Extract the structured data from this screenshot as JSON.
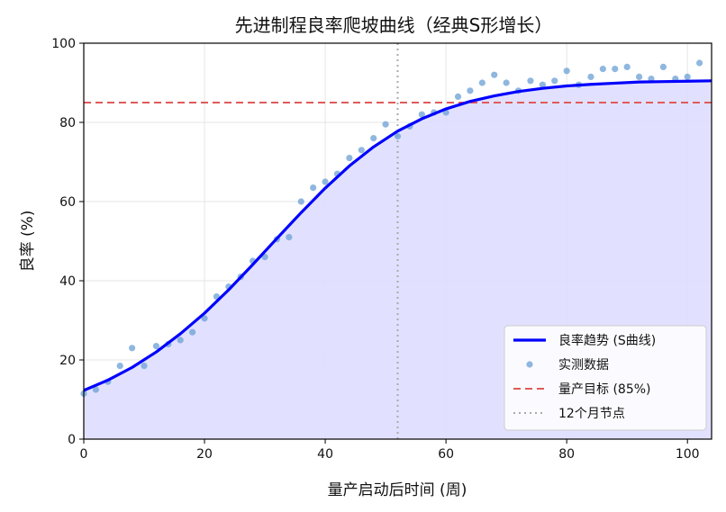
{
  "chart_data": {
    "type": "line",
    "title": "先进制程良率爬坡曲线（经典S形增长）",
    "xlabel": "量产启动后时间 (周)",
    "ylabel": "良率 (%)",
    "xlim": [
      0,
      104
    ],
    "ylim": [
      0,
      100
    ],
    "xticks": [
      0,
      20,
      40,
      60,
      80,
      100
    ],
    "yticks": [
      0,
      20,
      40,
      60,
      80,
      100
    ],
    "grid": true,
    "legend_position": "bottom-right",
    "series": [
      {
        "name": "良率趋势 (S曲线)",
        "kind": "line",
        "color": "#0000ff",
        "x": [
          0,
          4,
          8,
          12,
          16,
          20,
          24,
          28,
          32,
          36,
          40,
          44,
          48,
          52,
          56,
          60,
          64,
          68,
          72,
          76,
          80,
          84,
          88,
          92,
          96,
          100,
          104
        ],
        "y": [
          12.3,
          14.9,
          18.1,
          22.0,
          26.6,
          31.8,
          37.7,
          44.1,
          50.7,
          57.2,
          63.4,
          69.0,
          73.8,
          77.8,
          80.9,
          83.4,
          85.3,
          86.7,
          87.8,
          88.6,
          89.2,
          89.6,
          89.9,
          90.2,
          90.3,
          90.4,
          90.5
        ]
      },
      {
        "name": "实测数据",
        "kind": "scatter",
        "color": "#6a9fd4",
        "x": [
          0,
          2,
          4,
          6,
          8,
          10,
          12,
          14,
          16,
          18,
          20,
          22,
          24,
          26,
          28,
          30,
          32,
          34,
          36,
          38,
          40,
          42,
          44,
          46,
          48,
          50,
          52,
          54,
          56,
          58,
          60,
          62,
          64,
          66,
          68,
          70,
          72,
          74,
          76,
          78,
          80,
          82,
          84,
          86,
          88,
          90,
          92,
          94,
          96,
          98,
          100,
          102
        ],
        "y": [
          11.5,
          12.5,
          14.5,
          18.5,
          23,
          18.5,
          23.5,
          24,
          25,
          27,
          30.5,
          36,
          38.5,
          41,
          45,
          46,
          50.5,
          51,
          60,
          63.5,
          65,
          67,
          71,
          73,
          76,
          79.5,
          76.5,
          79,
          82,
          82.5,
          82.5,
          86.5,
          88,
          90,
          92,
          90,
          88,
          90.5,
          89.5,
          90.5,
          93,
          89.5,
          91.5,
          93.5,
          93.5,
          94,
          91.5,
          91,
          94,
          91,
          91.5,
          95
        ]
      },
      {
        "name": "量产目标 (85%)",
        "kind": "hline",
        "color": "#e05a5a",
        "y": 85
      },
      {
        "name": "12个月节点",
        "kind": "vline",
        "color": "#aaaaaa",
        "x": 52
      }
    ],
    "fill_under_trend": true,
    "fill_color": "#dcdcff"
  }
}
